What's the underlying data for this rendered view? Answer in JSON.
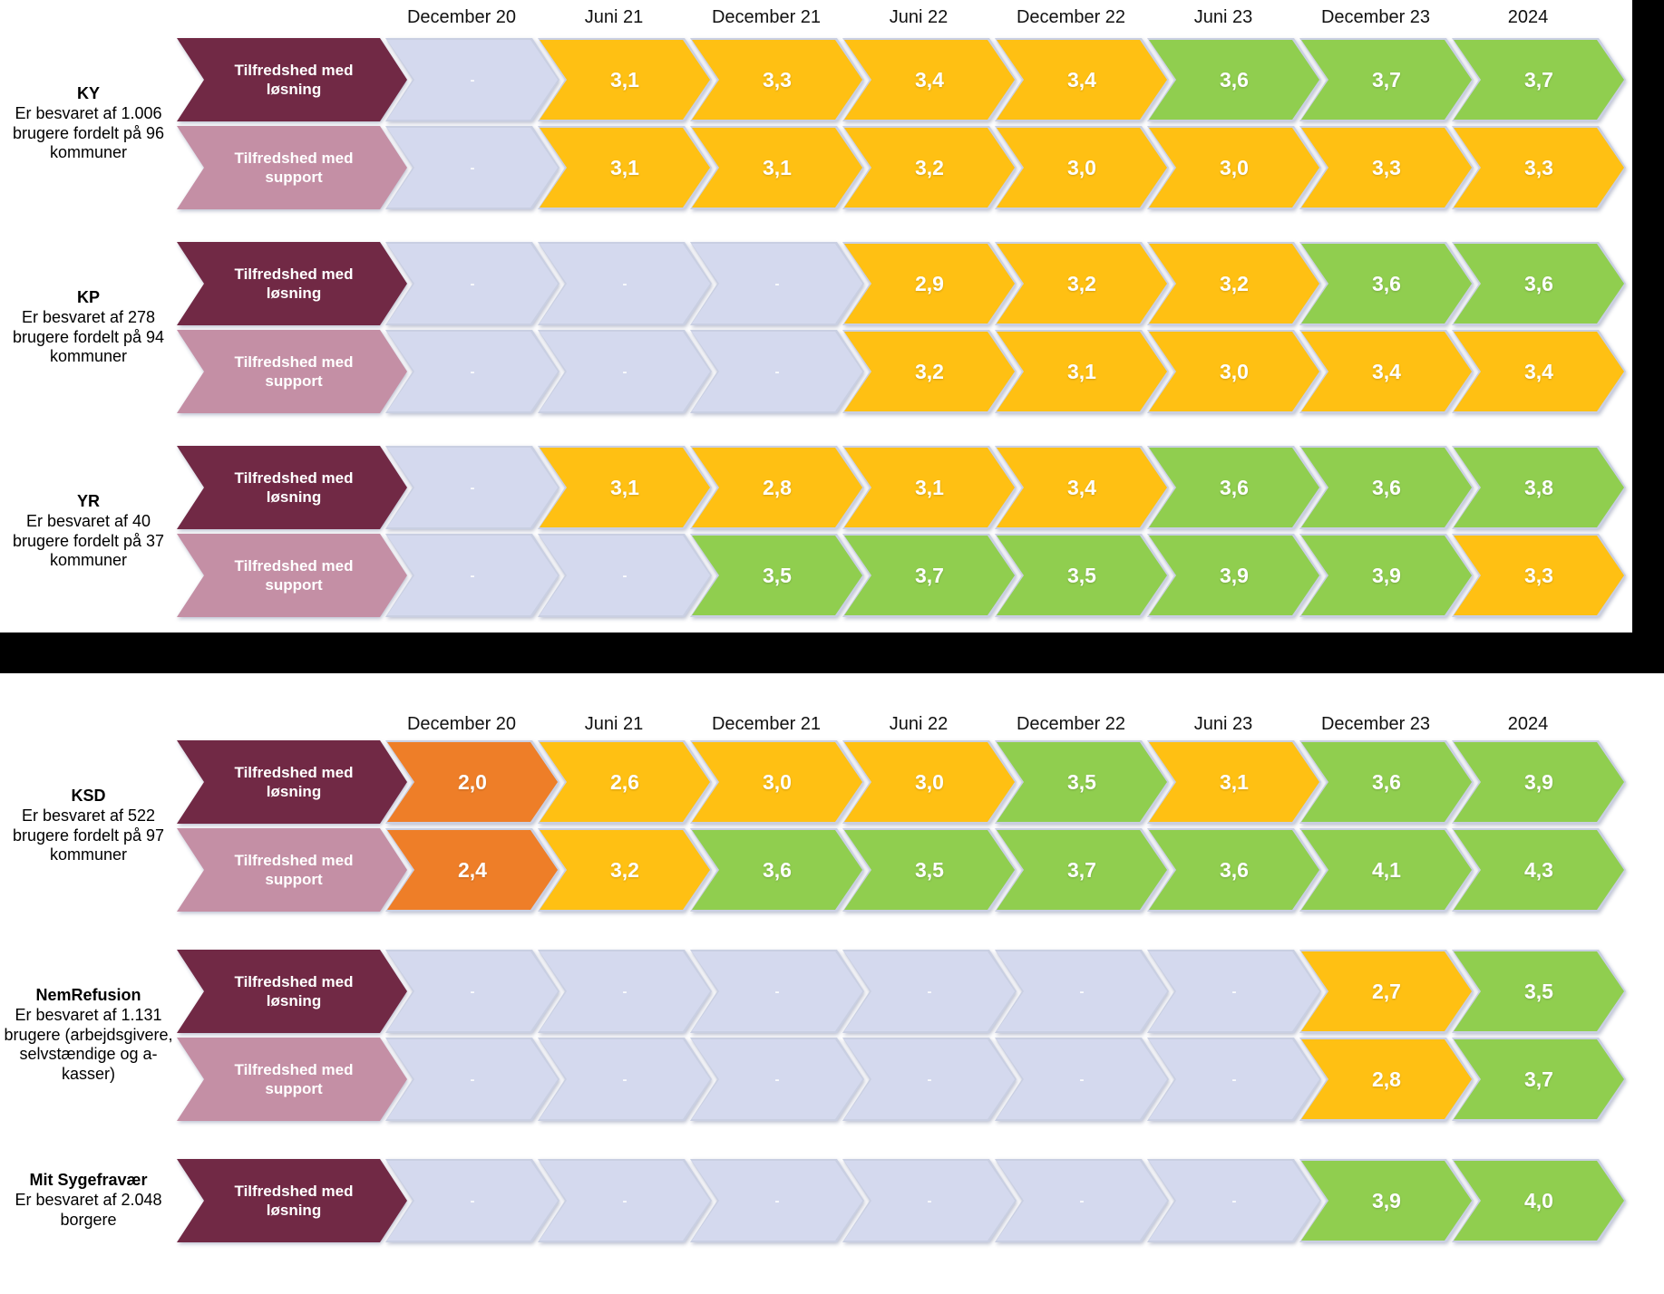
{
  "columns": [
    "December 20",
    "Juni 21",
    "December 21",
    "Juni 22",
    "December 22",
    "Juni 23",
    "December 23",
    "2024"
  ],
  "legend_labels": {
    "solution": "Tilfredshed med løsning",
    "support": "Tilfredshed med support"
  },
  "colors": {
    "maroon": "#712945",
    "mauve": "#C48FA5",
    "yellow": "#FFC013",
    "green": "#90CE4F",
    "orange": "#EE7E28",
    "empty": "#D4D9EE",
    "arrow_border": "#C9CFE2",
    "separator": "#000000"
  },
  "sections": [
    {
      "id": "top",
      "groups": [
        {
          "title": "KY",
          "desc": "Er besvaret af 1.006 brugere fordelt på 96 kommuner",
          "rows": [
            {
              "kind": "solution",
              "cells": [
                {
                  "v": "-",
                  "c": "empty"
                },
                {
                  "v": "3,1",
                  "c": "yellow"
                },
                {
                  "v": "3,3",
                  "c": "yellow"
                },
                {
                  "v": "3,4",
                  "c": "yellow"
                },
                {
                  "v": "3,4",
                  "c": "yellow"
                },
                {
                  "v": "3,6",
                  "c": "green"
                },
                {
                  "v": "3,7",
                  "c": "green"
                },
                {
                  "v": "3,7",
                  "c": "green"
                }
              ]
            },
            {
              "kind": "support",
              "cells": [
                {
                  "v": "-",
                  "c": "empty"
                },
                {
                  "v": "3,1",
                  "c": "yellow"
                },
                {
                  "v": "3,1",
                  "c": "yellow"
                },
                {
                  "v": "3,2",
                  "c": "yellow"
                },
                {
                  "v": "3,0",
                  "c": "yellow"
                },
                {
                  "v": "3,0",
                  "c": "yellow"
                },
                {
                  "v": "3,3",
                  "c": "yellow"
                },
                {
                  "v": "3,3",
                  "c": "yellow"
                }
              ]
            }
          ]
        },
        {
          "title": "KP",
          "desc": "Er besvaret af 278 brugere fordelt på 94 kommuner",
          "rows": [
            {
              "kind": "solution",
              "cells": [
                {
                  "v": "-",
                  "c": "empty"
                },
                {
                  "v": "-",
                  "c": "empty"
                },
                {
                  "v": "-",
                  "c": "empty"
                },
                {
                  "v": "2,9",
                  "c": "yellow"
                },
                {
                  "v": "3,2",
                  "c": "yellow"
                },
                {
                  "v": "3,2",
                  "c": "yellow"
                },
                {
                  "v": "3,6",
                  "c": "green"
                },
                {
                  "v": "3,6",
                  "c": "green"
                }
              ]
            },
            {
              "kind": "support",
              "cells": [
                {
                  "v": "-",
                  "c": "empty"
                },
                {
                  "v": "-",
                  "c": "empty"
                },
                {
                  "v": "-",
                  "c": "empty"
                },
                {
                  "v": "3,2",
                  "c": "yellow"
                },
                {
                  "v": "3,1",
                  "c": "yellow"
                },
                {
                  "v": "3,0",
                  "c": "yellow"
                },
                {
                  "v": "3,4",
                  "c": "yellow"
                },
                {
                  "v": "3,4",
                  "c": "yellow"
                }
              ]
            }
          ]
        },
        {
          "title": "YR",
          "desc": "Er besvaret af 40 brugere fordelt på 37 kommuner",
          "rows": [
            {
              "kind": "solution",
              "cells": [
                {
                  "v": "-",
                  "c": "empty"
                },
                {
                  "v": "3,1",
                  "c": "yellow"
                },
                {
                  "v": "2,8",
                  "c": "yellow"
                },
                {
                  "v": "3,1",
                  "c": "yellow"
                },
                {
                  "v": "3,4",
                  "c": "yellow"
                },
                {
                  "v": "3,6",
                  "c": "green"
                },
                {
                  "v": "3,6",
                  "c": "green"
                },
                {
                  "v": "3,8",
                  "c": "green"
                }
              ]
            },
            {
              "kind": "support",
              "cells": [
                {
                  "v": "-",
                  "c": "empty"
                },
                {
                  "v": "-",
                  "c": "empty"
                },
                {
                  "v": "3,5",
                  "c": "green"
                },
                {
                  "v": "3,7",
                  "c": "green"
                },
                {
                  "v": "3,5",
                  "c": "green"
                },
                {
                  "v": "3,9",
                  "c": "green"
                },
                {
                  "v": "3,9",
                  "c": "green"
                },
                {
                  "v": "3,3",
                  "c": "yellow"
                }
              ]
            }
          ]
        }
      ]
    },
    {
      "id": "bottom",
      "groups": [
        {
          "title": "KSD",
          "desc": "Er besvaret af 522 brugere fordelt på 97 kommuner",
          "rows": [
            {
              "kind": "solution",
              "cells": [
                {
                  "v": "2,0",
                  "c": "orange"
                },
                {
                  "v": "2,6",
                  "c": "yellow"
                },
                {
                  "v": "3,0",
                  "c": "yellow"
                },
                {
                  "v": "3,0",
                  "c": "yellow"
                },
                {
                  "v": "3,5",
                  "c": "green"
                },
                {
                  "v": "3,1",
                  "c": "yellow"
                },
                {
                  "v": "3,6",
                  "c": "green"
                },
                {
                  "v": "3,9",
                  "c": "green"
                }
              ]
            },
            {
              "kind": "support",
              "cells": [
                {
                  "v": "2,4",
                  "c": "orange"
                },
                {
                  "v": "3,2",
                  "c": "yellow"
                },
                {
                  "v": "3,6",
                  "c": "green"
                },
                {
                  "v": "3,5",
                  "c": "green"
                },
                {
                  "v": "3,7",
                  "c": "green"
                },
                {
                  "v": "3,6",
                  "c": "green"
                },
                {
                  "v": "4,1",
                  "c": "green"
                },
                {
                  "v": "4,3",
                  "c": "green"
                }
              ]
            }
          ]
        },
        {
          "title": "NemRefusion",
          "desc": "Er besvaret af 1.131 brugere (arbejdsgivere, selvstændige og a-kasser)",
          "rows": [
            {
              "kind": "solution",
              "cells": [
                {
                  "v": "-",
                  "c": "empty"
                },
                {
                  "v": "-",
                  "c": "empty"
                },
                {
                  "v": "-",
                  "c": "empty"
                },
                {
                  "v": "-",
                  "c": "empty"
                },
                {
                  "v": "-",
                  "c": "empty"
                },
                {
                  "v": "-",
                  "c": "empty"
                },
                {
                  "v": "2,7",
                  "c": "yellow"
                },
                {
                  "v": "3,5",
                  "c": "green"
                }
              ]
            },
            {
              "kind": "support",
              "cells": [
                {
                  "v": "-",
                  "c": "empty"
                },
                {
                  "v": "-",
                  "c": "empty"
                },
                {
                  "v": "-",
                  "c": "empty"
                },
                {
                  "v": "-",
                  "c": "empty"
                },
                {
                  "v": "-",
                  "c": "empty"
                },
                {
                  "v": "-",
                  "c": "empty"
                },
                {
                  "v": "2,8",
                  "c": "yellow"
                },
                {
                  "v": "3,7",
                  "c": "green"
                }
              ]
            }
          ]
        },
        {
          "title": "Mit Sygefravær",
          "desc": "Er besvaret af 2.048 borgere",
          "rows": [
            {
              "kind": "solution",
              "cells": [
                {
                  "v": "-",
                  "c": "empty"
                },
                {
                  "v": "-",
                  "c": "empty"
                },
                {
                  "v": "-",
                  "c": "empty"
                },
                {
                  "v": "-",
                  "c": "empty"
                },
                {
                  "v": "-",
                  "c": "empty"
                },
                {
                  "v": "-",
                  "c": "empty"
                },
                {
                  "v": "3,9",
                  "c": "green"
                },
                {
                  "v": "4,0",
                  "c": "green"
                }
              ]
            }
          ]
        }
      ]
    }
  ],
  "chart_data": {
    "type": "table",
    "categories": [
      "December 20",
      "Juni 21",
      "December 21",
      "Juni 22",
      "December 22",
      "Juni 23",
      "December 23",
      "2024"
    ],
    "value_scale": "tilfredshedsscore (ca. 1-5)",
    "series": [
      {
        "program": "KY",
        "metric": "Tilfredshed med løsning",
        "values": [
          null,
          3.1,
          3.3,
          3.4,
          3.4,
          3.6,
          3.7,
          3.7
        ]
      },
      {
        "program": "KY",
        "metric": "Tilfredshed med support",
        "values": [
          null,
          3.1,
          3.1,
          3.2,
          3.0,
          3.0,
          3.3,
          3.3
        ]
      },
      {
        "program": "KP",
        "metric": "Tilfredshed med løsning",
        "values": [
          null,
          null,
          null,
          2.9,
          3.2,
          3.2,
          3.6,
          3.6
        ]
      },
      {
        "program": "KP",
        "metric": "Tilfredshed med support",
        "values": [
          null,
          null,
          null,
          3.2,
          3.1,
          3.0,
          3.4,
          3.4
        ]
      },
      {
        "program": "YR",
        "metric": "Tilfredshed med løsning",
        "values": [
          null,
          3.1,
          2.8,
          3.1,
          3.4,
          3.6,
          3.6,
          3.8
        ]
      },
      {
        "program": "YR",
        "metric": "Tilfredshed med support",
        "values": [
          null,
          null,
          3.5,
          3.7,
          3.5,
          3.9,
          3.9,
          3.3
        ]
      },
      {
        "program": "KSD",
        "metric": "Tilfredshed med løsning",
        "values": [
          2.0,
          2.6,
          3.0,
          3.0,
          3.5,
          3.1,
          3.6,
          3.9
        ]
      },
      {
        "program": "KSD",
        "metric": "Tilfredshed med support",
        "values": [
          2.4,
          3.2,
          3.6,
          3.5,
          3.7,
          3.6,
          4.1,
          4.3
        ]
      },
      {
        "program": "NemRefusion",
        "metric": "Tilfredshed med løsning",
        "values": [
          null,
          null,
          null,
          null,
          null,
          null,
          2.7,
          3.5
        ]
      },
      {
        "program": "NemRefusion",
        "metric": "Tilfredshed med support",
        "values": [
          null,
          null,
          null,
          null,
          null,
          null,
          2.8,
          3.7
        ]
      },
      {
        "program": "Mit Sygefravær",
        "metric": "Tilfredshed med løsning",
        "values": [
          null,
          null,
          null,
          null,
          null,
          null,
          3.9,
          4.0
        ]
      }
    ],
    "color_coding": {
      "orange": "lav score (ca. <= 2,4)",
      "yellow": "mellem score (ca. 2,5-3,4)",
      "green": "høj score (ca. >= 3,5)",
      "lavender": "ingen måling (-)"
    },
    "legend_position": "none",
    "grid": false
  }
}
